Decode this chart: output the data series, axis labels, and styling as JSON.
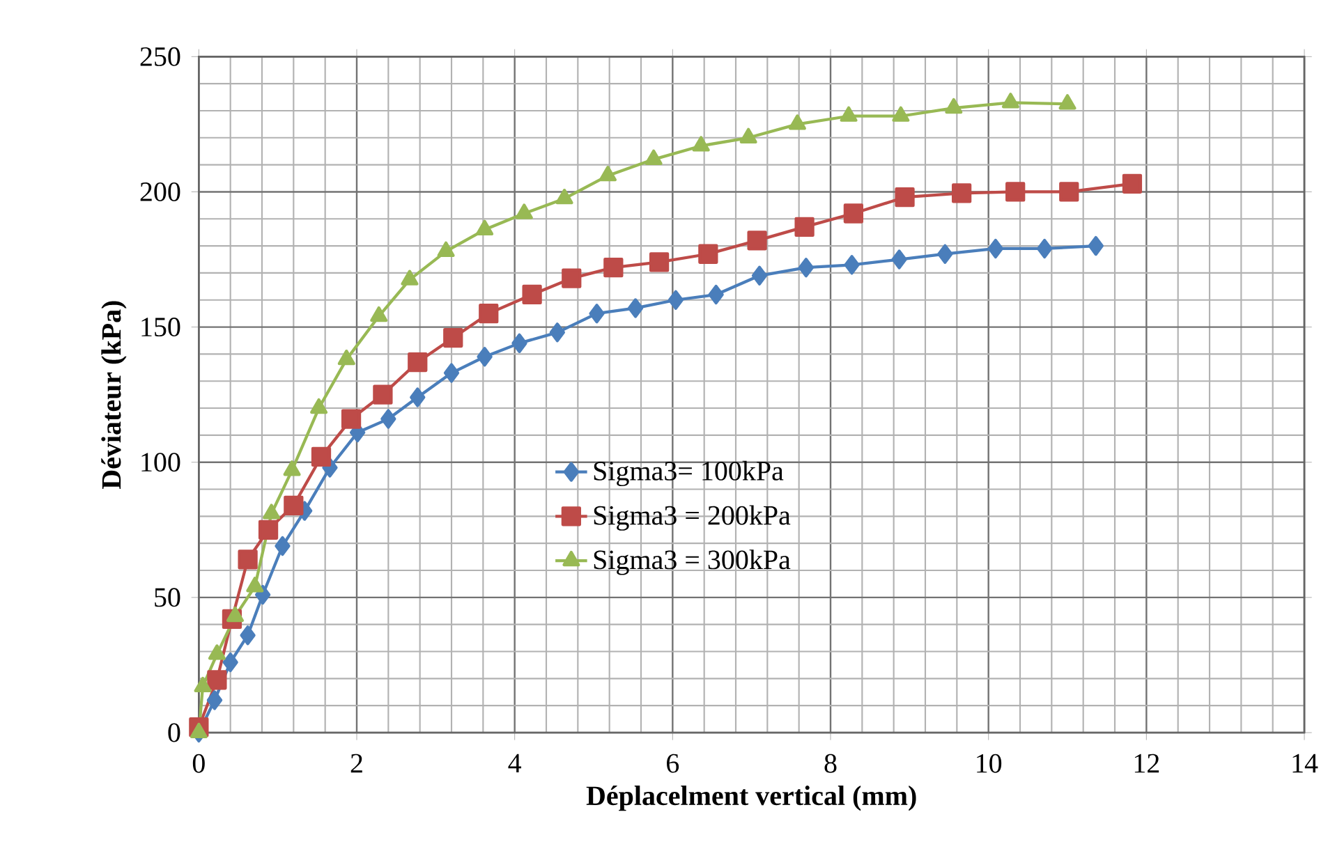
{
  "chart_data": {
    "type": "line",
    "xlabel": "Déplacelment vertical (mm)",
    "ylabel": "Déviateur (kPa)",
    "xlim": [
      0,
      14
    ],
    "ylim": [
      0,
      250
    ],
    "xticks": [
      0,
      2,
      4,
      6,
      8,
      10,
      12,
      14
    ],
    "yticks": [
      0,
      50,
      100,
      150,
      200,
      250
    ],
    "grid": true,
    "legend": "center",
    "series": [
      {
        "name": "Sigma3= 100kPa",
        "color": "#4a7ebb",
        "marker": "diamond",
        "x": [
          0,
          0.2,
          0.4,
          0.62,
          0.81,
          1.06,
          1.34,
          1.66,
          2.01,
          2.4,
          2.77,
          3.2,
          3.62,
          4.06,
          4.54,
          5.04,
          5.53,
          6.04,
          6.55,
          7.1,
          7.69,
          8.27,
          8.87,
          9.45,
          10.09,
          10.71,
          11.36
        ],
        "values": [
          0,
          12,
          26,
          36,
          51,
          69,
          82,
          98,
          111,
          116,
          124,
          133,
          139,
          144,
          148,
          155,
          157,
          160,
          162,
          169,
          172,
          173,
          175,
          177,
          179,
          179,
          180
        ]
      },
      {
        "name": "Sigma3 = 200kPa",
        "color": "#be4b48",
        "marker": "square",
        "x": [
          0,
          0.23,
          0.42,
          0.62,
          0.88,
          1.2,
          1.55,
          1.93,
          2.33,
          2.77,
          3.22,
          3.67,
          4.22,
          4.72,
          5.25,
          5.83,
          6.45,
          7.07,
          7.67,
          8.29,
          8.94,
          9.66,
          10.34,
          11.02,
          11.82
        ],
        "values": [
          2,
          19.5,
          42,
          64,
          75,
          84,
          102,
          116,
          125,
          137,
          146,
          155,
          162,
          168,
          172,
          174,
          177,
          182,
          187,
          192,
          198,
          199.5,
          200,
          200,
          203
        ]
      },
      {
        "name": "Sigma3 = 300kPa",
        "color": "#98b954",
        "marker": "triangle",
        "x": [
          0,
          0.05,
          0.23,
          0.46,
          0.71,
          0.92,
          1.18,
          1.52,
          1.87,
          2.28,
          2.67,
          3.13,
          3.62,
          4.12,
          4.63,
          5.18,
          5.76,
          6.36,
          6.96,
          7.58,
          8.23,
          8.89,
          9.56,
          10.28,
          11.0
        ],
        "values": [
          0,
          17,
          29,
          43,
          54,
          81,
          97,
          120,
          138,
          154,
          167.5,
          178,
          186,
          192,
          197.5,
          206,
          212,
          217,
          220,
          225,
          228,
          228,
          231,
          233,
          232.5
        ]
      }
    ]
  }
}
